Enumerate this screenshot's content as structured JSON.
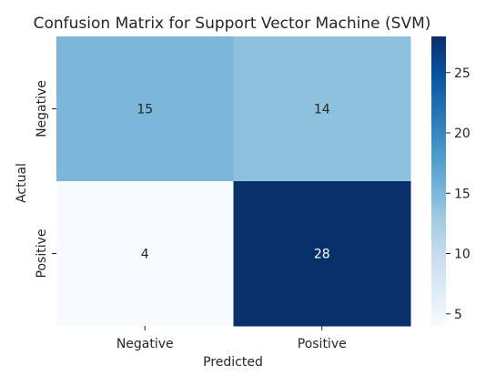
{
  "chart_data": {
    "type": "heatmap",
    "title": "Confusion Matrix for Support Vector Machine (SVM)",
    "xlabel": "Predicted",
    "ylabel": "Actual",
    "x_categories": [
      "Negative",
      "Positive"
    ],
    "y_categories": [
      "Negative",
      "Positive"
    ],
    "values": [
      [
        15,
        14
      ],
      [
        4,
        28
      ]
    ],
    "colormap": "Blues",
    "color_range": [
      4,
      28
    ],
    "colorbar_ticks": [
      5,
      10,
      15,
      20,
      25
    ],
    "colors": {
      "low": "#f7fbff",
      "high": "#08306b",
      "light_text": "#ffffff",
      "dark_text": "#262626"
    }
  }
}
